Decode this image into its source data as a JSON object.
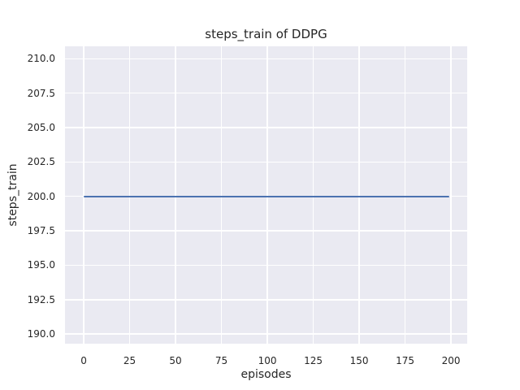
{
  "colors": {
    "figure_background": "#ffffff",
    "axes_background": "#eaeaf2",
    "gridline": "#ffffff",
    "line": "#4c72b0",
    "text": "#262626"
  },
  "chart_data": {
    "type": "line",
    "title": "steps_train of DDPG",
    "xlabel": "episodes",
    "ylabel": "steps_train",
    "x_ticks": [
      "0",
      "25",
      "50",
      "75",
      "100",
      "125",
      "150",
      "175",
      "200"
    ],
    "y_ticks": [
      "190.0",
      "192.5",
      "195.0",
      "197.5",
      "200.0",
      "202.5",
      "205.0",
      "207.5",
      "210.0"
    ],
    "xlim": [
      -10.2,
      208.8
    ],
    "ylim": [
      189.3,
      210.9
    ],
    "grid": true,
    "legend": "none",
    "series": [
      {
        "name": "steps_train",
        "color": "#4c72b0",
        "x": [
          0,
          199
        ],
        "y": [
          200,
          200
        ]
      }
    ]
  }
}
